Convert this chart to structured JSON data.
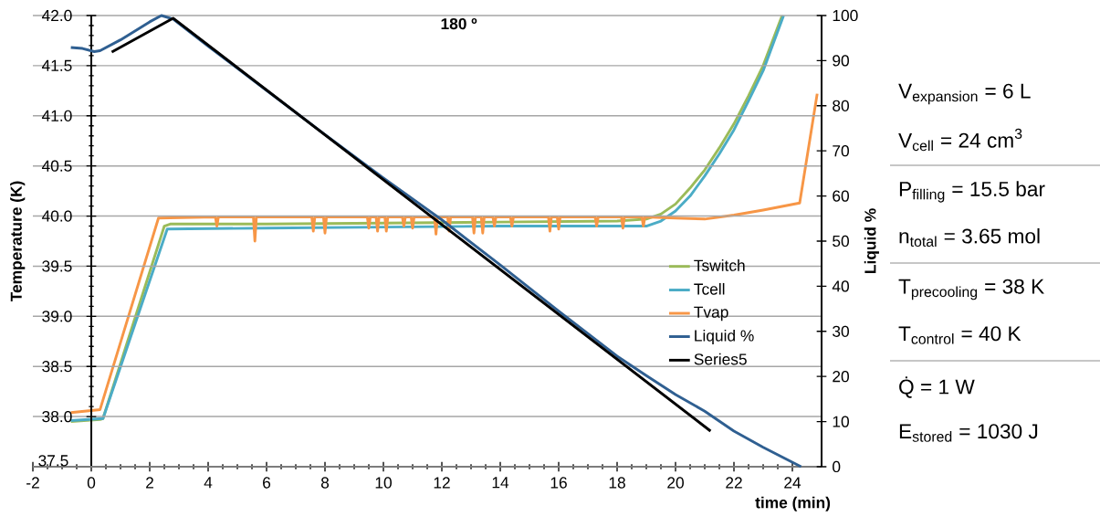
{
  "chart_data": {
    "type": "line",
    "title": "**180 º**",
    "xlabel": "time (min)",
    "ylabel": "Temperature (K)",
    "y2label": "Liquid %",
    "xlim": [
      -2,
      25
    ],
    "xticks": [
      -2,
      0,
      2,
      4,
      6,
      8,
      10,
      12,
      14,
      16,
      18,
      20,
      22,
      24
    ],
    "ylim": [
      37.5,
      42
    ],
    "yticks": [
      37.5,
      {
        "value": 38,
        "label": "38.0"
      },
      38.5,
      {
        "value": 39,
        "label": "39.0"
      },
      39.5,
      {
        "value": 40,
        "label": "40.0"
      },
      40.5,
      {
        "value": 41,
        "label": "41.0"
      },
      41.5,
      {
        "value": 42,
        "label": "42.0"
      }
    ],
    "y2lim": [
      0,
      100
    ],
    "y2ticks": [
      0,
      10,
      20,
      30,
      40,
      50,
      60,
      70,
      80,
      90,
      100
    ],
    "grid": "y",
    "legend": "right",
    "series": [
      {
        "name": "Tswitch",
        "type": "line",
        "color": "#9bbb59",
        "x": [
          -0.7,
          0.3,
          0.4,
          2.5,
          2.7,
          6,
          10,
          14,
          18,
          19,
          19.5,
          20,
          20.5,
          21,
          21.5,
          22,
          22.5,
          23,
          23.65
        ],
        "values": [
          37.95,
          37.97,
          37.98,
          39.9,
          39.92,
          39.92,
          39.93,
          39.94,
          39.95,
          39.97,
          40.02,
          40.12,
          40.28,
          40.46,
          40.68,
          40.92,
          41.2,
          41.5,
          42.0
        ]
      },
      {
        "name": "Tcell",
        "type": "line",
        "color": "#4bacc6",
        "x": [
          -0.7,
          0.4,
          2.6,
          6,
          10,
          14,
          17,
          19,
          19.5,
          20,
          20.5,
          21,
          21.5,
          22,
          22.5,
          23,
          23.7
        ],
        "values": [
          37.96,
          37.98,
          39.87,
          39.88,
          39.89,
          39.9,
          39.9,
          39.9,
          39.95,
          40.05,
          40.2,
          40.4,
          40.62,
          40.86,
          41.15,
          41.45,
          42.0
        ]
      },
      {
        "name": "Tvap",
        "type": "line",
        "color": "#f79646",
        "x": [
          -0.7,
          0.3,
          2.3,
          4.25,
          4.3,
          4.35,
          5.55,
          5.6,
          5.65,
          7.55,
          7.6,
          7.65,
          7.95,
          8.0,
          8.05,
          9.45,
          9.5,
          9.55,
          9.75,
          9.8,
          9.85,
          10.05,
          10.1,
          10.15,
          10.65,
          10.7,
          10.75,
          10.95,
          11.0,
          11.05,
          11.75,
          11.8,
          11.85,
          12.2,
          12.25,
          12.3,
          13.05,
          13.1,
          13.15,
          13.35,
          13.4,
          13.45,
          13.75,
          13.8,
          13.85,
          14.35,
          14.4,
          14.45,
          15.65,
          15.7,
          15.75,
          15.95,
          16.0,
          16.05,
          17.25,
          17.3,
          17.35,
          18.15,
          18.2,
          18.25,
          18.85,
          18.9,
          18.95,
          20,
          21,
          22,
          23,
          24.25,
          24.85
        ],
        "values": [
          38.04,
          38.07,
          39.98,
          39.99,
          39.9,
          39.99,
          39.99,
          39.75,
          39.99,
          39.99,
          39.85,
          39.99,
          39.99,
          39.83,
          39.99,
          39.99,
          39.88,
          39.99,
          39.99,
          39.85,
          39.99,
          39.99,
          39.85,
          39.99,
          39.99,
          39.9,
          39.99,
          39.99,
          39.88,
          39.99,
          39.99,
          39.82,
          39.99,
          39.99,
          39.85,
          39.99,
          39.99,
          39.83,
          39.99,
          39.99,
          39.83,
          39.99,
          39.99,
          39.9,
          39.99,
          39.99,
          39.9,
          39.99,
          39.99,
          39.85,
          39.99,
          39.99,
          39.87,
          39.99,
          39.99,
          39.9,
          39.99,
          39.99,
          39.88,
          39.99,
          39.99,
          39.9,
          39.99,
          39.98,
          39.97,
          40.01,
          40.06,
          40.13,
          41.22
        ]
      },
      {
        "name": "Liquid %",
        "type": "line",
        "color": "#2f5f91",
        "axis": "y2",
        "x": [
          -0.7,
          -0.3,
          0.1,
          0.3,
          1,
          2,
          2.4,
          2.8,
          4,
          6,
          8,
          10,
          12,
          14,
          16,
          18,
          19,
          20,
          21,
          22,
          23,
          24.3
        ],
        "values": [
          92.9,
          92.7,
          92.0,
          92.2,
          94.6,
          98.6,
          100,
          99.2,
          93.2,
          83.4,
          73.6,
          64.0,
          54.7,
          44.7,
          34.5,
          24.5,
          20.2,
          16.0,
          12.3,
          7.9,
          4.3,
          0
        ]
      },
      {
        "name": "Series5",
        "type": "line",
        "color": "#000000",
        "axis": "y2",
        "x": [
          0.7,
          2.8,
          21.2
        ],
        "values": [
          91.9,
          99.4,
          7.9
        ]
      }
    ],
    "annotations": [
      "\\text{V}_{\\text{expansion}}\\text{ = 6 L}",
      "\\text{V}_{\\text{cell}}\\text{ = 24 cm}^{\\text{3}}",
      "\\text{P}_{\\text{filling}}\\text{ = 15.5 bar}",
      "\\text{n}_{\\text{total}}\\text{ = 3.65 mol}",
      "\\text{T}_{\\text{precooling}}\\text{ = 38 K}",
      "\\text{T}_{\\text{control}}\\text{ = 40 K}",
      "\\text{Q̇ = 1 W}",
      "\\text{E}_{\\text{stored}}\\text{ = 1030 J}"
    ]
  }
}
